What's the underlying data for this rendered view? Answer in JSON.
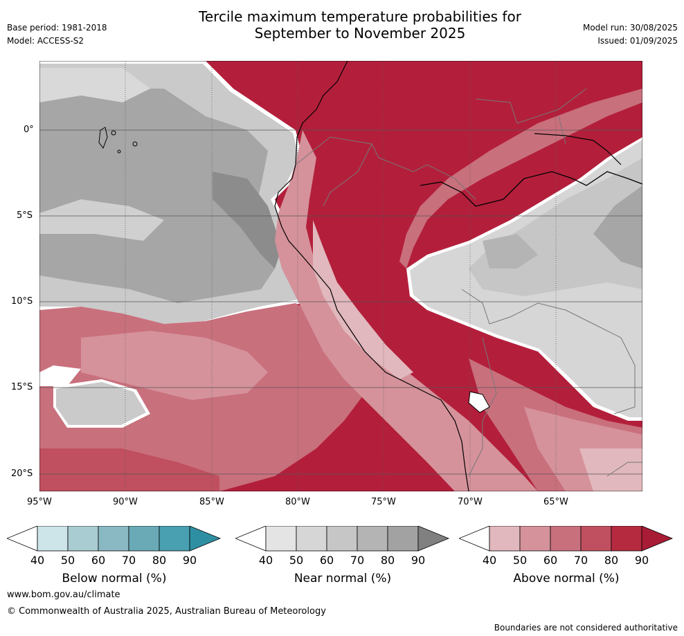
{
  "header": {
    "title_line1": "Tercile maximum temperature probabilities for",
    "title_line2": "September to November 2025",
    "base_period": "Base period: 1981-2018",
    "model": "Model: ACCESS-S2",
    "model_run": "Model run: 30/08/2025",
    "issued": "Issued: 01/09/2025"
  },
  "map": {
    "lat_labels": [
      "0°",
      "5°S",
      "10°S",
      "15°S",
      "20°S"
    ],
    "lon_labels": [
      "95°W",
      "90°W",
      "85°W",
      "80°W",
      "75°W",
      "70°W",
      "65°W"
    ]
  },
  "colorbars": [
    {
      "label": "Below normal (%)",
      "ticks": [
        "40",
        "50",
        "60",
        "70",
        "80",
        "90"
      ],
      "colors": [
        "#ffffff",
        "#cde4e9",
        "#a9cbd2",
        "#8ab8c3",
        "#6aaab7",
        "#48a0b0",
        "#2f8fa2"
      ]
    },
    {
      "label": "Near normal (%)",
      "ticks": [
        "40",
        "50",
        "60",
        "70",
        "80",
        "90"
      ],
      "colors": [
        "#ffffff",
        "#e4e4e4",
        "#d6d6d6",
        "#c6c6c6",
        "#b4b4b4",
        "#a2a2a2",
        "#808080"
      ]
    },
    {
      "label": "Above normal (%)",
      "ticks": [
        "40",
        "50",
        "60",
        "70",
        "80",
        "90"
      ],
      "colors": [
        "#ffffff",
        "#e1b8bd",
        "#d5929b",
        "#c9707d",
        "#c0505f",
        "#b62a40",
        "#a81c35"
      ]
    }
  ],
  "footer": {
    "url": "www.bom.gov.au/climate",
    "copyright": "© Commonwealth of Australia 2025, Australian Bureau of Meteorology",
    "disclaimer": "Boundaries are not considered authoritative"
  }
}
